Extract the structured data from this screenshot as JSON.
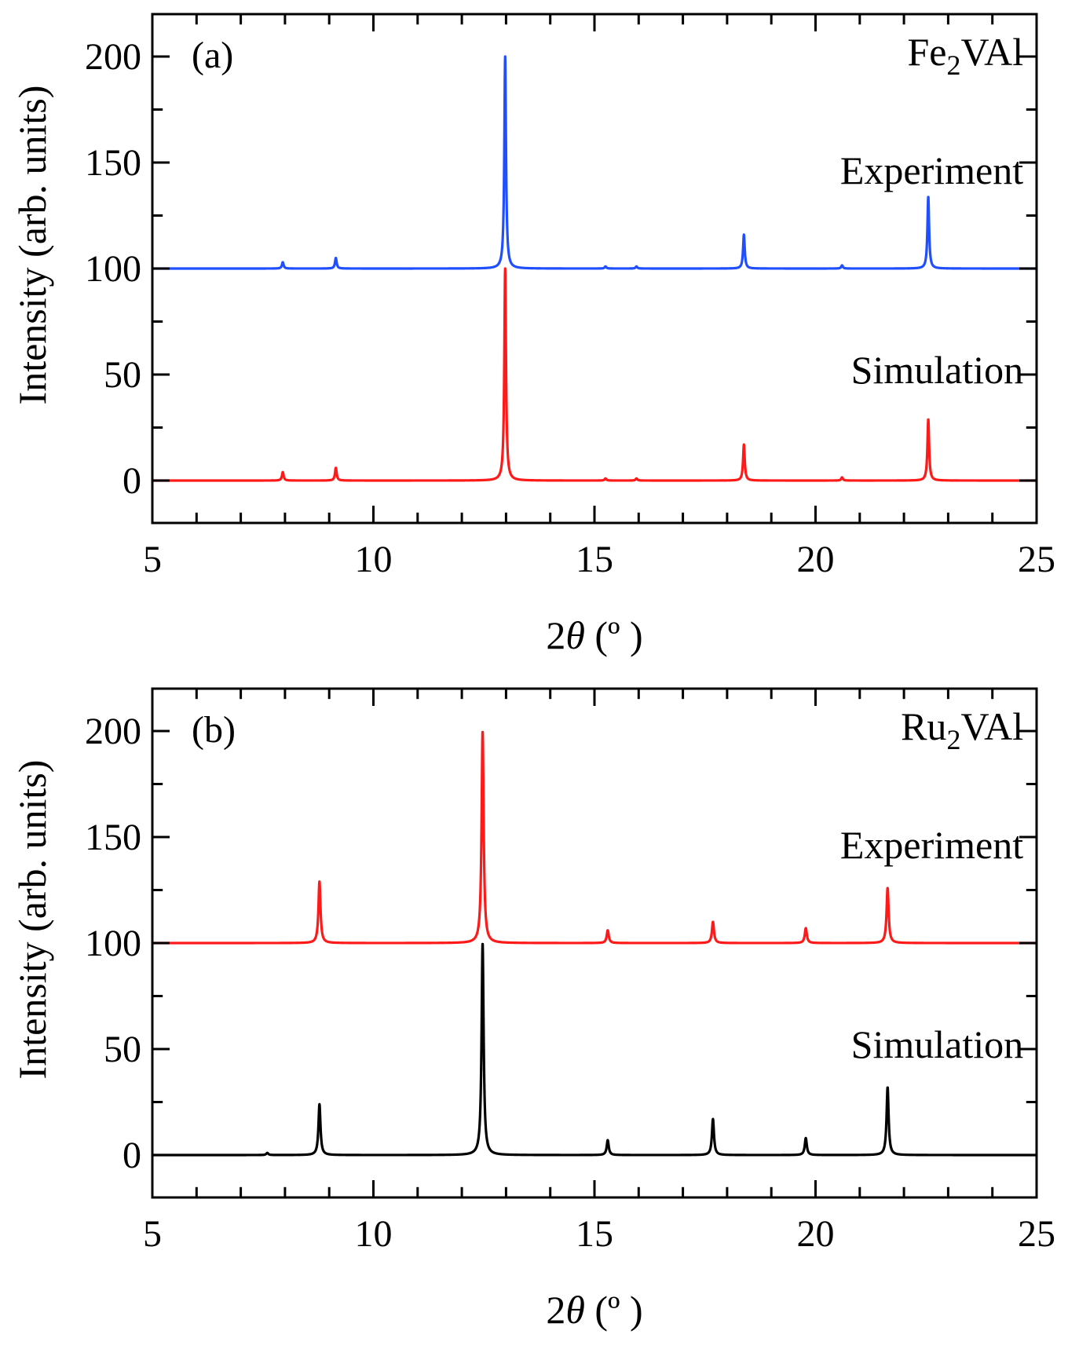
{
  "chart_data": [
    {
      "type": "line",
      "panel_label": "(a)",
      "compound": {
        "base": "Fe",
        "sub": "2",
        "rest": "VAl"
      },
      "xlabel": {
        "pre": "2",
        "theta": "θ",
        "post": " (º )"
      },
      "ylabel": "Intensity (arb. units)",
      "xlim": [
        5,
        25
      ],
      "ylim": [
        -20,
        220
      ],
      "xticks": [
        5,
        10,
        15,
        20,
        25
      ],
      "yticks": [
        0,
        50,
        100,
        150,
        200
      ],
      "annotations": [
        {
          "text": "Experiment",
          "x": 24.7,
          "y": 140
        },
        {
          "text": "Simulation",
          "x": 24.7,
          "y": 46
        }
      ],
      "peak_width": 0.045,
      "series": [
        {
          "name": "Experiment",
          "color": "#1f4fff",
          "baseline": 100,
          "peaks": [
            [
              7.95,
              3
            ],
            [
              9.15,
              5
            ],
            [
              12.98,
              100
            ],
            [
              15.25,
              1
            ],
            [
              15.95,
              1
            ],
            [
              18.38,
              16
            ],
            [
              20.6,
              1.5
            ],
            [
              22.55,
              34
            ]
          ]
        },
        {
          "name": "Simulation",
          "color": "#ff1a1a",
          "baseline": 0,
          "peaks": [
            [
              7.95,
              4
            ],
            [
              9.15,
              6
            ],
            [
              12.98,
              100
            ],
            [
              15.25,
              1
            ],
            [
              15.95,
              1
            ],
            [
              18.38,
              17
            ],
            [
              20.6,
              1.5
            ],
            [
              22.55,
              29
            ]
          ]
        }
      ]
    },
    {
      "type": "line",
      "panel_label": "(b)",
      "compound": {
        "base": "Ru",
        "sub": "2",
        "rest": "VAl"
      },
      "xlabel": {
        "pre": "2",
        "theta": "θ",
        "post": " (º )"
      },
      "ylabel": "Intensity (arb. units)",
      "xlim": [
        5,
        25
      ],
      "ylim": [
        -20,
        220
      ],
      "xticks": [
        5,
        10,
        15,
        20,
        25
      ],
      "yticks": [
        0,
        50,
        100,
        150,
        200
      ],
      "annotations": [
        {
          "text": "Experiment",
          "x": 24.7,
          "y": 140
        },
        {
          "text": "Simulation",
          "x": 24.7,
          "y": 46
        }
      ],
      "peak_width": 0.055,
      "series": [
        {
          "name": "Experiment",
          "color": "#ff1a1a",
          "baseline": 100,
          "peaks": [
            [
              8.78,
              29
            ],
            [
              12.47,
              100
            ],
            [
              15.3,
              6
            ],
            [
              17.68,
              10
            ],
            [
              19.78,
              7
            ],
            [
              21.63,
              26
            ]
          ]
        },
        {
          "name": "Simulation",
          "color": "#000000",
          "baseline": 0,
          "peaks": [
            [
              7.6,
              1
            ],
            [
              8.78,
              24
            ],
            [
              12.47,
              100
            ],
            [
              15.3,
              7
            ],
            [
              17.68,
              17
            ],
            [
              19.78,
              8
            ],
            [
              21.63,
              32
            ]
          ]
        }
      ]
    }
  ]
}
